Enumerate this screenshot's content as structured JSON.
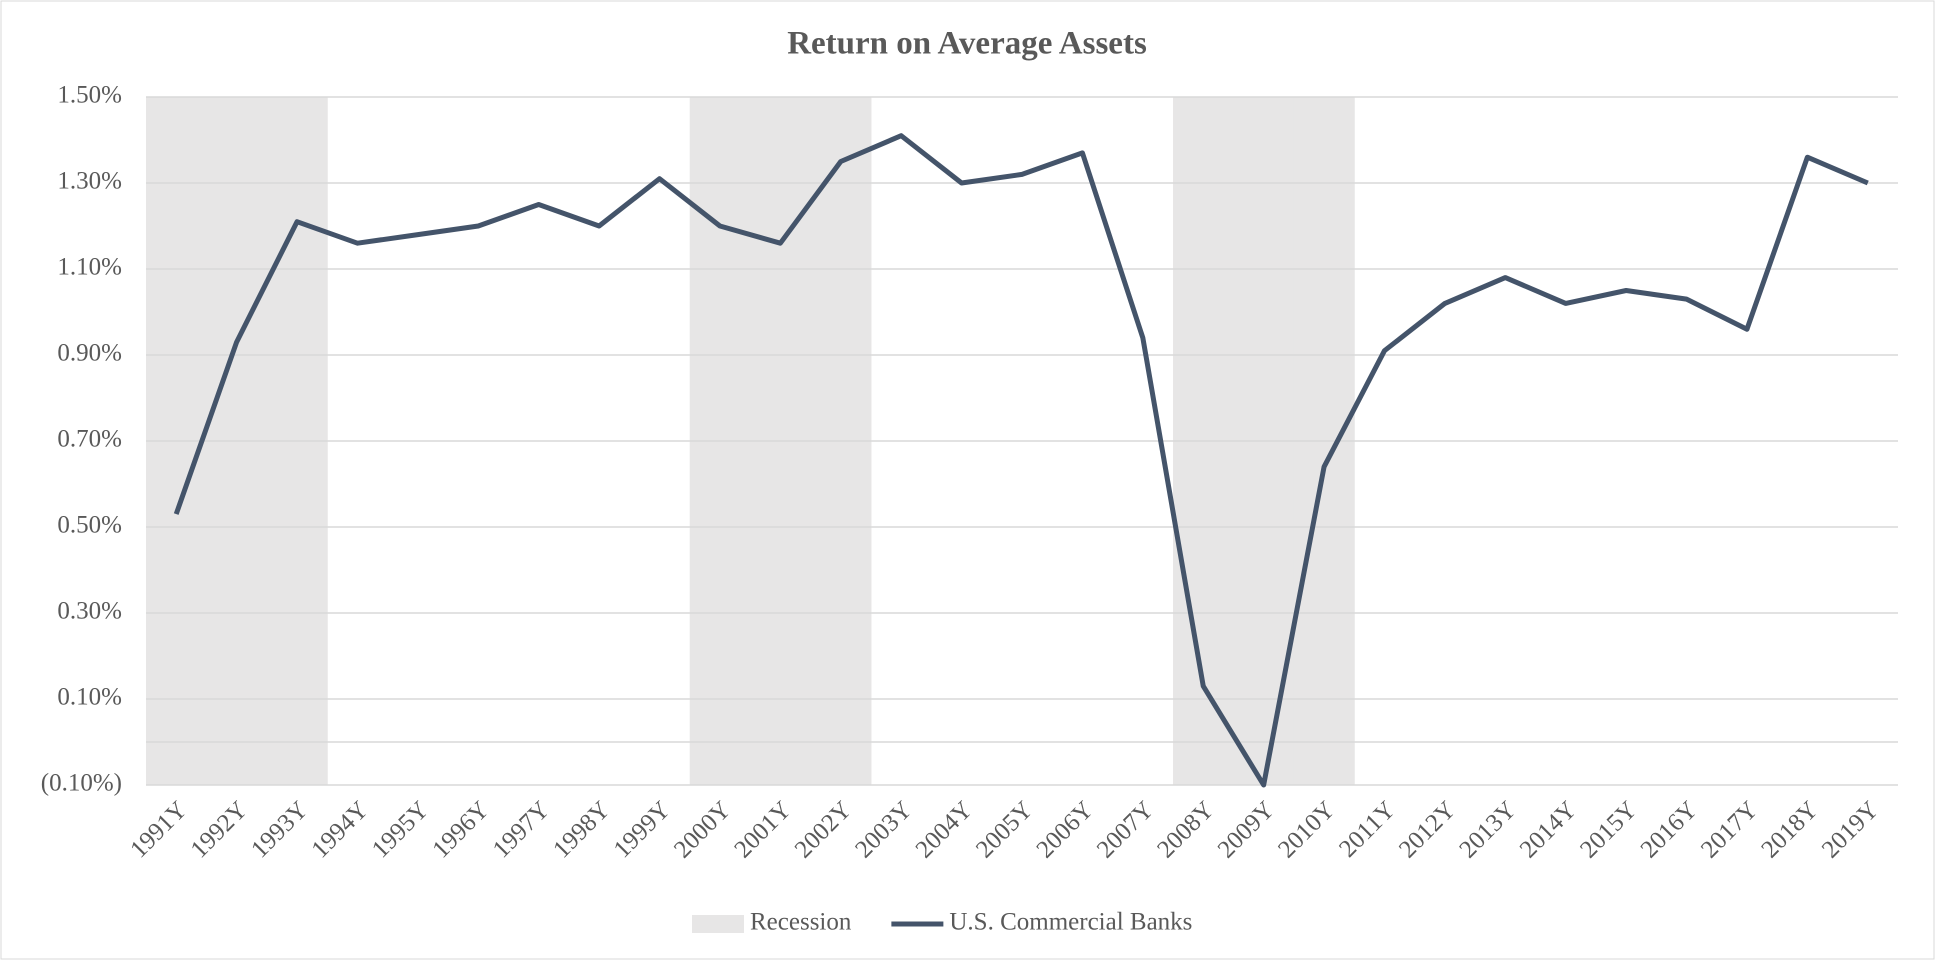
{
  "chart_data": {
    "type": "line",
    "title": "Return on Average Assets",
    "categories": [
      "1991Y",
      "1992Y",
      "1993Y",
      "1994Y",
      "1995Y",
      "1996Y",
      "1997Y",
      "1998Y",
      "1999Y",
      "2000Y",
      "2001Y",
      "2002Y",
      "2003Y",
      "2004Y",
      "2005Y",
      "2006Y",
      "2007Y",
      "2008Y",
      "2009Y",
      "2010Y",
      "2011Y",
      "2012Y",
      "2013Y",
      "2014Y",
      "2015Y",
      "2016Y",
      "2017Y",
      "2018Y",
      "2019Y"
    ],
    "series": [
      {
        "name": "Recession",
        "type": "bar",
        "color": "#e7e6e6",
        "values": [
          1.5,
          1.5,
          1.5,
          null,
          null,
          null,
          null,
          null,
          null,
          1.5,
          1.5,
          1.5,
          null,
          null,
          null,
          null,
          null,
          1.5,
          1.5,
          1.5,
          null,
          null,
          null,
          null,
          null,
          null,
          null,
          null,
          null
        ]
      },
      {
        "name": "U.S. Commercial Banks",
        "type": "line",
        "color": "#44546a",
        "values": [
          0.53,
          0.93,
          1.21,
          1.16,
          1.18,
          1.2,
          1.25,
          1.2,
          1.31,
          1.2,
          1.16,
          1.35,
          1.41,
          1.3,
          1.32,
          1.37,
          0.94,
          0.13,
          -0.1,
          0.64,
          0.91,
          1.02,
          1.08,
          1.02,
          1.05,
          1.03,
          0.96,
          1.36,
          1.3
        ]
      }
    ],
    "ylim": [
      -0.1,
      1.5
    ],
    "yticks": [
      {
        "value": -0.1,
        "label": "(0.10%)"
      },
      {
        "value": 0.1,
        "label": "0.10%"
      },
      {
        "value": 0.3,
        "label": "0.30%"
      },
      {
        "value": 0.5,
        "label": "0.50%"
      },
      {
        "value": 0.7,
        "label": "0.70%"
      },
      {
        "value": 0.9,
        "label": "0.90%"
      },
      {
        "value": 1.1,
        "label": "1.10%"
      },
      {
        "value": 1.3,
        "label": "1.30%"
      },
      {
        "value": 1.5,
        "label": "1.50%"
      }
    ],
    "grid": true,
    "legend": "bottom"
  }
}
